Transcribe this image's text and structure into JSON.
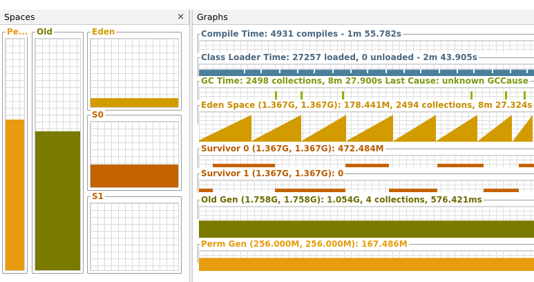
{
  "spaces": {
    "title": "Spaces",
    "close_glyph": "×",
    "boxes": [
      {
        "id": "perm",
        "label": "Pe...",
        "color": "#e69c0c",
        "fill": 0.65
      },
      {
        "id": "old",
        "label": "Old",
        "color": "#7a7a00",
        "fill": 0.6
      },
      {
        "id": "eden",
        "label": "Eden",
        "color": "#d29b00",
        "fill": 0.13
      },
      {
        "id": "s0",
        "label": "S0",
        "color": "#c56200",
        "fill": 0.35
      },
      {
        "id": "s1",
        "label": "S1",
        "color": "#c56200",
        "fill": 0.0
      }
    ]
  },
  "graphs": {
    "title": "Graphs",
    "items": [
      {
        "id": "compile",
        "label": "Compile Time: 4931 compiles - 1m 55.782s",
        "label_color": "#4b6880",
        "color": "#4b7f9c",
        "kind": "empty"
      },
      {
        "id": "classloader",
        "label": "Class Loader Time: 27257 loaded, 0 unloaded - 2m 43.905s",
        "label_color": "#4b6880",
        "color": "#4b7f9c",
        "kind": "band"
      },
      {
        "id": "gc",
        "label": "GC Time: 2498 collections, 8m 27.900s  Last Cause: unknown GCCause",
        "label_color": "#7a9a0f",
        "color": "#8db600",
        "kind": "spikes"
      },
      {
        "id": "eden",
        "label": "Eden Space (1.367G, 1.367G): 178.441M, 2494 collections, 8m 27.324s",
        "label_color": "#c88c00",
        "color": "#d29b00",
        "kind": "saw"
      },
      {
        "id": "s0",
        "label": "Survivor 0 (1.367G, 1.367G): 472.484M",
        "label_color": "#b85c00",
        "color": "#c56200",
        "kind": "blocks0"
      },
      {
        "id": "s1",
        "label": "Survivor 1 (1.367G, 1.367G): 0",
        "label_color": "#b85c00",
        "color": "#c56200",
        "kind": "blocks1"
      },
      {
        "id": "oldgen",
        "label": "Old Gen (1.758G, 1.758G): 1.054G, 4 collections, 576.421ms",
        "label_color": "#6b6b00",
        "color": "#7a7a00",
        "kind": "solid"
      },
      {
        "id": "permgen",
        "label": "Perm Gen (256.000M, 256.000M): 167.486M",
        "label_color": "#e69c0c",
        "color": "#e69c0c",
        "kind": "solid"
      }
    ]
  }
}
